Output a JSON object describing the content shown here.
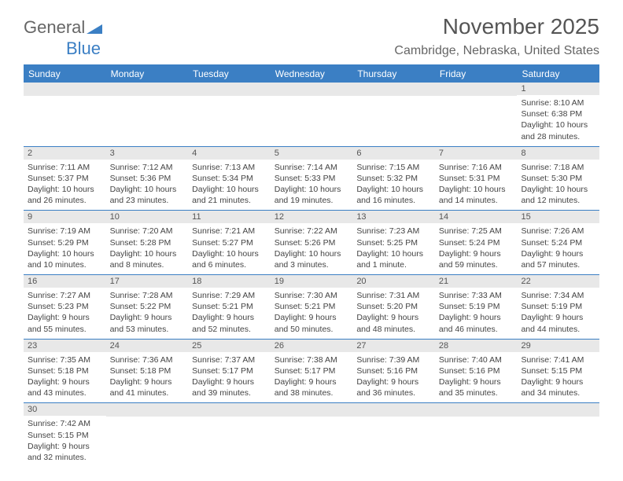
{
  "logo": {
    "part1": "General",
    "part2": "Blue"
  },
  "header": {
    "title": "November 2025",
    "location": "Cambridge, Nebraska, United States"
  },
  "dayNames": [
    "Sunday",
    "Monday",
    "Tuesday",
    "Wednesday",
    "Thursday",
    "Friday",
    "Saturday"
  ],
  "style": {
    "header_bg": "#3b7fc4",
    "header_text": "#ffffff",
    "daynum_bg": "#e8e8e8",
    "border_color": "#3b7fc4",
    "title_color": "#555555",
    "body_text": "#444444",
    "font_family": "Arial",
    "title_fontsize": 28,
    "location_fontsize": 16,
    "dayheader_fontsize": 12,
    "cell_fontsize": 10.5
  },
  "weeks": [
    [
      {
        "blank": true
      },
      {
        "blank": true
      },
      {
        "blank": true
      },
      {
        "blank": true
      },
      {
        "blank": true
      },
      {
        "blank": true
      },
      {
        "num": "1",
        "sunrise": "8:10 AM",
        "sunset": "6:38 PM",
        "daylight": "10 hours and 28 minutes."
      }
    ],
    [
      {
        "num": "2",
        "sunrise": "7:11 AM",
        "sunset": "5:37 PM",
        "daylight": "10 hours and 26 minutes."
      },
      {
        "num": "3",
        "sunrise": "7:12 AM",
        "sunset": "5:36 PM",
        "daylight": "10 hours and 23 minutes."
      },
      {
        "num": "4",
        "sunrise": "7:13 AM",
        "sunset": "5:34 PM",
        "daylight": "10 hours and 21 minutes."
      },
      {
        "num": "5",
        "sunrise": "7:14 AM",
        "sunset": "5:33 PM",
        "daylight": "10 hours and 19 minutes."
      },
      {
        "num": "6",
        "sunrise": "7:15 AM",
        "sunset": "5:32 PM",
        "daylight": "10 hours and 16 minutes."
      },
      {
        "num": "7",
        "sunrise": "7:16 AM",
        "sunset": "5:31 PM",
        "daylight": "10 hours and 14 minutes."
      },
      {
        "num": "8",
        "sunrise": "7:18 AM",
        "sunset": "5:30 PM",
        "daylight": "10 hours and 12 minutes."
      }
    ],
    [
      {
        "num": "9",
        "sunrise": "7:19 AM",
        "sunset": "5:29 PM",
        "daylight": "10 hours and 10 minutes."
      },
      {
        "num": "10",
        "sunrise": "7:20 AM",
        "sunset": "5:28 PM",
        "daylight": "10 hours and 8 minutes."
      },
      {
        "num": "11",
        "sunrise": "7:21 AM",
        "sunset": "5:27 PM",
        "daylight": "10 hours and 6 minutes."
      },
      {
        "num": "12",
        "sunrise": "7:22 AM",
        "sunset": "5:26 PM",
        "daylight": "10 hours and 3 minutes."
      },
      {
        "num": "13",
        "sunrise": "7:23 AM",
        "sunset": "5:25 PM",
        "daylight": "10 hours and 1 minute."
      },
      {
        "num": "14",
        "sunrise": "7:25 AM",
        "sunset": "5:24 PM",
        "daylight": "9 hours and 59 minutes."
      },
      {
        "num": "15",
        "sunrise": "7:26 AM",
        "sunset": "5:24 PM",
        "daylight": "9 hours and 57 minutes."
      }
    ],
    [
      {
        "num": "16",
        "sunrise": "7:27 AM",
        "sunset": "5:23 PM",
        "daylight": "9 hours and 55 minutes."
      },
      {
        "num": "17",
        "sunrise": "7:28 AM",
        "sunset": "5:22 PM",
        "daylight": "9 hours and 53 minutes."
      },
      {
        "num": "18",
        "sunrise": "7:29 AM",
        "sunset": "5:21 PM",
        "daylight": "9 hours and 52 minutes."
      },
      {
        "num": "19",
        "sunrise": "7:30 AM",
        "sunset": "5:21 PM",
        "daylight": "9 hours and 50 minutes."
      },
      {
        "num": "20",
        "sunrise": "7:31 AM",
        "sunset": "5:20 PM",
        "daylight": "9 hours and 48 minutes."
      },
      {
        "num": "21",
        "sunrise": "7:33 AM",
        "sunset": "5:19 PM",
        "daylight": "9 hours and 46 minutes."
      },
      {
        "num": "22",
        "sunrise": "7:34 AM",
        "sunset": "5:19 PM",
        "daylight": "9 hours and 44 minutes."
      }
    ],
    [
      {
        "num": "23",
        "sunrise": "7:35 AM",
        "sunset": "5:18 PM",
        "daylight": "9 hours and 43 minutes."
      },
      {
        "num": "24",
        "sunrise": "7:36 AM",
        "sunset": "5:18 PM",
        "daylight": "9 hours and 41 minutes."
      },
      {
        "num": "25",
        "sunrise": "7:37 AM",
        "sunset": "5:17 PM",
        "daylight": "9 hours and 39 minutes."
      },
      {
        "num": "26",
        "sunrise": "7:38 AM",
        "sunset": "5:17 PM",
        "daylight": "9 hours and 38 minutes."
      },
      {
        "num": "27",
        "sunrise": "7:39 AM",
        "sunset": "5:16 PM",
        "daylight": "9 hours and 36 minutes."
      },
      {
        "num": "28",
        "sunrise": "7:40 AM",
        "sunset": "5:16 PM",
        "daylight": "9 hours and 35 minutes."
      },
      {
        "num": "29",
        "sunrise": "7:41 AM",
        "sunset": "5:15 PM",
        "daylight": "9 hours and 34 minutes."
      }
    ],
    [
      {
        "num": "30",
        "sunrise": "7:42 AM",
        "sunset": "5:15 PM",
        "daylight": "9 hours and 32 minutes."
      },
      {
        "blank": true
      },
      {
        "blank": true
      },
      {
        "blank": true
      },
      {
        "blank": true
      },
      {
        "blank": true
      },
      {
        "blank": true
      }
    ]
  ],
  "labels": {
    "sunrise": "Sunrise:",
    "sunset": "Sunset:",
    "daylight": "Daylight:"
  }
}
